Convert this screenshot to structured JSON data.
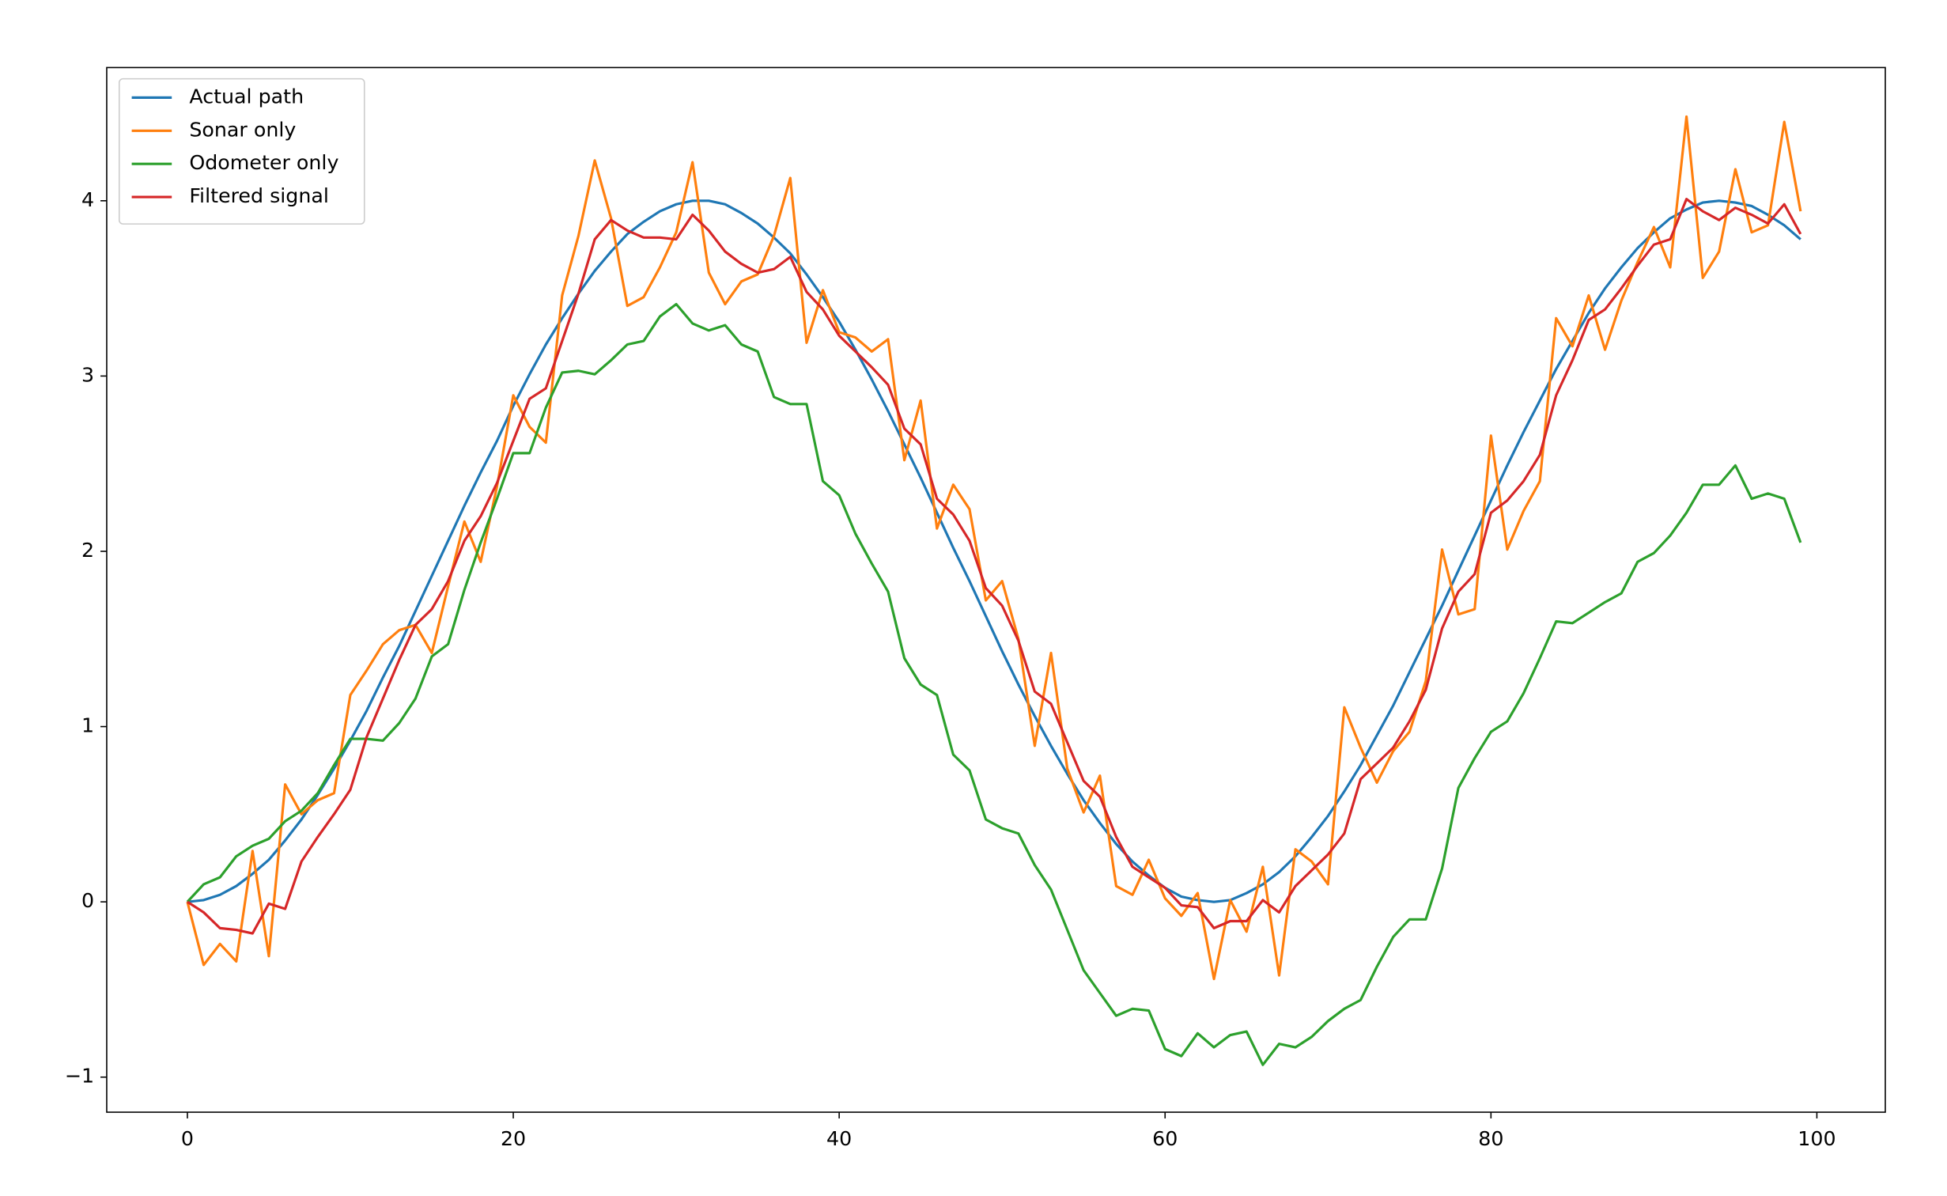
{
  "chart_data": {
    "type": "line",
    "x": [
      0,
      1,
      2,
      3,
      4,
      5,
      6,
      7,
      8,
      9,
      10,
      11,
      12,
      13,
      14,
      15,
      16,
      17,
      18,
      19,
      20,
      21,
      22,
      23,
      24,
      25,
      26,
      27,
      28,
      29,
      30,
      31,
      32,
      33,
      34,
      35,
      36,
      37,
      38,
      39,
      40,
      41,
      42,
      43,
      44,
      45,
      46,
      47,
      48,
      49,
      50,
      51,
      52,
      53,
      54,
      55,
      56,
      57,
      58,
      59,
      60,
      61,
      62,
      63,
      64,
      65,
      66,
      67,
      68,
      69,
      70,
      71,
      72,
      73,
      74,
      75,
      76,
      77,
      78,
      79,
      80,
      81,
      82,
      83,
      84,
      85,
      86,
      87,
      88,
      89,
      90,
      91,
      92,
      93,
      94,
      95,
      96,
      97,
      98,
      99
    ],
    "series": [
      {
        "name": "Actual path",
        "color": "#1f77b4",
        "values": [
          0,
          0.01,
          0.04,
          0.09,
          0.16,
          0.24,
          0.35,
          0.47,
          0.61,
          0.76,
          0.92,
          1.09,
          1.28,
          1.46,
          1.66,
          1.86,
          2.06,
          2.26,
          2.45,
          2.63,
          2.83,
          3.01,
          3.18,
          3.33,
          3.47,
          3.6,
          3.71,
          3.81,
          3.88,
          3.94,
          3.98,
          4.0,
          4.0,
          3.98,
          3.93,
          3.87,
          3.79,
          3.7,
          3.58,
          3.45,
          3.31,
          3.15,
          2.98,
          2.8,
          2.61,
          2.42,
          2.22,
          2.02,
          1.83,
          1.63,
          1.43,
          1.24,
          1.06,
          0.89,
          0.73,
          0.58,
          0.45,
          0.33,
          0.23,
          0.15,
          0.08,
          0.03,
          0.01,
          0,
          0.01,
          0.05,
          0.1,
          0.17,
          0.26,
          0.37,
          0.49,
          0.63,
          0.78,
          0.95,
          1.12,
          1.31,
          1.5,
          1.69,
          1.89,
          2.09,
          2.29,
          2.49,
          2.68,
          2.86,
          3.04,
          3.2,
          3.36,
          3.5,
          3.62,
          3.73,
          3.82,
          3.9,
          3.95,
          3.99,
          4.0,
          3.99,
          3.97,
          3.92,
          3.86,
          3.78
        ]
      },
      {
        "name": "Sonar only",
        "color": "#ff7f0e",
        "values": [
          0,
          -0.36,
          -0.24,
          -0.34,
          0.29,
          -0.31,
          0.67,
          0.5,
          0.58,
          0.62,
          1.18,
          1.32,
          1.47,
          1.55,
          1.58,
          1.42,
          1.8,
          2.17,
          1.94,
          2.37,
          2.89,
          2.71,
          2.62,
          3.46,
          3.8,
          4.23,
          3.9,
          3.4,
          3.45,
          3.62,
          3.82,
          4.22,
          3.59,
          3.41,
          3.54,
          3.58,
          3.8,
          4.13,
          3.19,
          3.49,
          3.25,
          3.22,
          3.14,
          3.21,
          2.52,
          2.86,
          2.13,
          2.38,
          2.24,
          1.72,
          1.83,
          1.5,
          0.89,
          1.42,
          0.76,
          0.51,
          0.72,
          0.09,
          0.04,
          0.24,
          0.02,
          -0.08,
          0.05,
          -0.44,
          0.01,
          -0.17,
          0.2,
          -0.42,
          0.3,
          0.23,
          0.1,
          1.11,
          0.88,
          0.68,
          0.86,
          0.97,
          1.26,
          2.01,
          1.64,
          1.67,
          2.66,
          2.01,
          2.23,
          2.4,
          3.33,
          3.17,
          3.46,
          3.15,
          3.43,
          3.65,
          3.85,
          3.62,
          4.48,
          3.56,
          3.71,
          4.18,
          3.82,
          3.86,
          4.45,
          3.94
        ]
      },
      {
        "name": "Odometer only",
        "color": "#2ca02c",
        "values": [
          0,
          0.1,
          0.14,
          0.26,
          0.32,
          0.36,
          0.46,
          0.52,
          0.62,
          0.78,
          0.93,
          0.93,
          0.92,
          1.02,
          1.16,
          1.4,
          1.47,
          1.78,
          2.05,
          2.3,
          2.56,
          2.56,
          2.82,
          3.02,
          3.03,
          3.01,
          3.09,
          3.18,
          3.2,
          3.34,
          3.41,
          3.3,
          3.26,
          3.29,
          3.18,
          3.14,
          2.88,
          2.84,
          2.84,
          2.4,
          2.32,
          2.1,
          1.93,
          1.77,
          1.39,
          1.24,
          1.18,
          0.84,
          0.75,
          0.47,
          0.42,
          0.39,
          0.21,
          0.07,
          -0.16,
          -0.39,
          -0.52,
          -0.65,
          -0.61,
          -0.62,
          -0.84,
          -0.88,
          -0.75,
          -0.83,
          -0.76,
          -0.74,
          -0.93,
          -0.81,
          -0.83,
          -0.77,
          -0.68,
          -0.61,
          -0.56,
          -0.37,
          -0.2,
          -0.1,
          -0.1,
          0.19,
          0.65,
          0.82,
          0.97,
          1.03,
          1.19,
          1.39,
          1.6,
          1.59,
          1.65,
          1.71,
          1.76,
          1.94,
          1.99,
          2.09,
          2.22,
          2.38,
          2.38,
          2.49,
          2.3,
          2.33,
          2.3,
          2.05
        ]
      },
      {
        "name": "Filtered signal",
        "color": "#d62728",
        "values": [
          0,
          -0.06,
          -0.15,
          -0.16,
          -0.18,
          -0.01,
          -0.04,
          0.23,
          0.37,
          0.5,
          0.64,
          0.94,
          1.16,
          1.38,
          1.58,
          1.67,
          1.83,
          2.06,
          2.2,
          2.39,
          2.63,
          2.87,
          2.93,
          3.2,
          3.47,
          3.78,
          3.89,
          3.83,
          3.79,
          3.79,
          3.78,
          3.92,
          3.83,
          3.71,
          3.64,
          3.59,
          3.61,
          3.68,
          3.48,
          3.38,
          3.23,
          3.14,
          3.05,
          2.95,
          2.7,
          2.61,
          2.3,
          2.21,
          2.06,
          1.79,
          1.69,
          1.49,
          1.2,
          1.13,
          0.91,
          0.69,
          0.6,
          0.37,
          0.2,
          0.14,
          0.08,
          -0.02,
          -0.03,
          -0.15,
          -0.11,
          -0.11,
          0.01,
          -0.06,
          0.09,
          0.18,
          0.27,
          0.39,
          0.7,
          0.79,
          0.88,
          1.03,
          1.21,
          1.56,
          1.77,
          1.87,
          2.22,
          2.29,
          2.4,
          2.55,
          2.89,
          3.09,
          3.32,
          3.38,
          3.5,
          3.63,
          3.75,
          3.78,
          4.01,
          3.94,
          3.89,
          3.96,
          3.92,
          3.87,
          3.98,
          3.81
        ]
      }
    ],
    "xlim": [
      -4.95,
      104.2
    ],
    "xticks": [
      0,
      20,
      40,
      60,
      80,
      100
    ],
    "ylim": [
      -1.2,
      4.76
    ],
    "yticks": [
      {
        "value": -1,
        "label": "−1"
      },
      0,
      1,
      2,
      3,
      4
    ],
    "legend": "upper left"
  }
}
